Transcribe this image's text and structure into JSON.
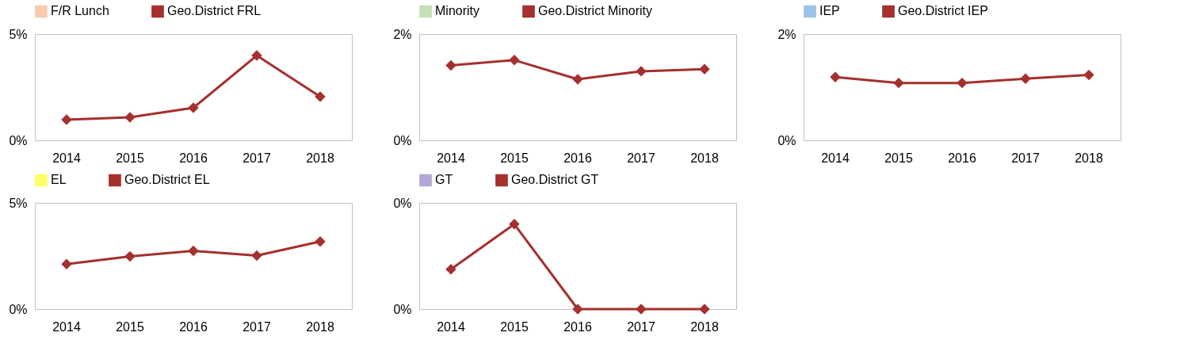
{
  "chart_data": [
    {
      "type": "line",
      "categories": [
        "2014",
        "2015",
        "2016",
        "2017",
        "2018"
      ],
      "ylim": [
        0,
        5
      ],
      "yticks": [
        {
          "value": 0,
          "label": "0%"
        },
        {
          "value": 5,
          "label": "5%"
        }
      ],
      "marker": "diamond",
      "legend": "top",
      "series": [
        {
          "name": "F/R Lunch",
          "type": "bar",
          "color": "#f8cbad",
          "values": [
            null,
            null,
            null,
            null,
            null
          ]
        },
        {
          "name": "Geo.District FRL",
          "color": "#a5302d",
          "values": [
            0.97,
            1.08,
            1.53,
            3.99,
            2.05
          ]
        }
      ]
    },
    {
      "type": "line",
      "categories": [
        "2014",
        "2015",
        "2016",
        "2017",
        "2018"
      ],
      "ylim": [
        0,
        2
      ],
      "yticks": [
        {
          "value": 0,
          "label": "0%"
        },
        {
          "value": 2,
          "label": "2%"
        }
      ],
      "marker": "diamond",
      "legend": "top",
      "series": [
        {
          "name": "Minority",
          "type": "bar",
          "color": "#c5e0b4",
          "values": [
            null,
            null,
            null,
            null,
            null
          ]
        },
        {
          "name": "Geo.District Minority",
          "color": "#a5302d",
          "values": [
            1.41,
            1.51,
            1.15,
            1.3,
            1.34
          ]
        }
      ]
    },
    {
      "type": "line",
      "categories": [
        "2014",
        "2015",
        "2016",
        "2017",
        "2018"
      ],
      "ylim": [
        0,
        2
      ],
      "yticks": [
        {
          "value": 0,
          "label": "0%"
        },
        {
          "value": 2,
          "label": "2%"
        }
      ],
      "marker": "diamond",
      "legend": "top",
      "series": [
        {
          "name": "IEP",
          "type": "bar",
          "color": "#9dc3e6",
          "values": [
            null,
            null,
            null,
            null,
            null
          ]
        },
        {
          "name": "Geo.District IEP",
          "color": "#a5302d",
          "values": [
            1.19,
            1.08,
            1.08,
            1.16,
            1.23
          ]
        }
      ]
    },
    {
      "type": "line",
      "categories": [
        "2014",
        "2015",
        "2016",
        "2017",
        "2018"
      ],
      "ylim": [
        0,
        5
      ],
      "yticks": [
        {
          "value": 0,
          "label": "0%"
        },
        {
          "value": 5,
          "label": "5%"
        }
      ],
      "marker": "diamond",
      "legend": "top",
      "series": [
        {
          "name": "EL",
          "type": "bar",
          "color": "#ffff66",
          "values": [
            null,
            null,
            null,
            null,
            null
          ]
        },
        {
          "name": "Geo.District EL",
          "color": "#a5302d",
          "values": [
            2.12,
            2.48,
            2.74,
            2.52,
            3.18
          ]
        }
      ]
    },
    {
      "type": "line",
      "categories": [
        "2014",
        "2015",
        "2016",
        "2017",
        "2018"
      ],
      "ylim": [
        0,
        0.4
      ],
      "yticks": [
        {
          "value": 0,
          "label": "0%"
        },
        {
          "value": 0.4,
          "label": "0%"
        }
      ],
      "marker": "diamond",
      "legend": "top",
      "series": [
        {
          "name": "GT",
          "type": "bar",
          "color": "#b4a7d6",
          "values": [
            null,
            null,
            null,
            null,
            null
          ]
        },
        {
          "name": "Geo.District GT",
          "color": "#a5302d",
          "values": [
            0.15,
            0.32,
            0,
            0,
            0
          ]
        }
      ]
    }
  ]
}
